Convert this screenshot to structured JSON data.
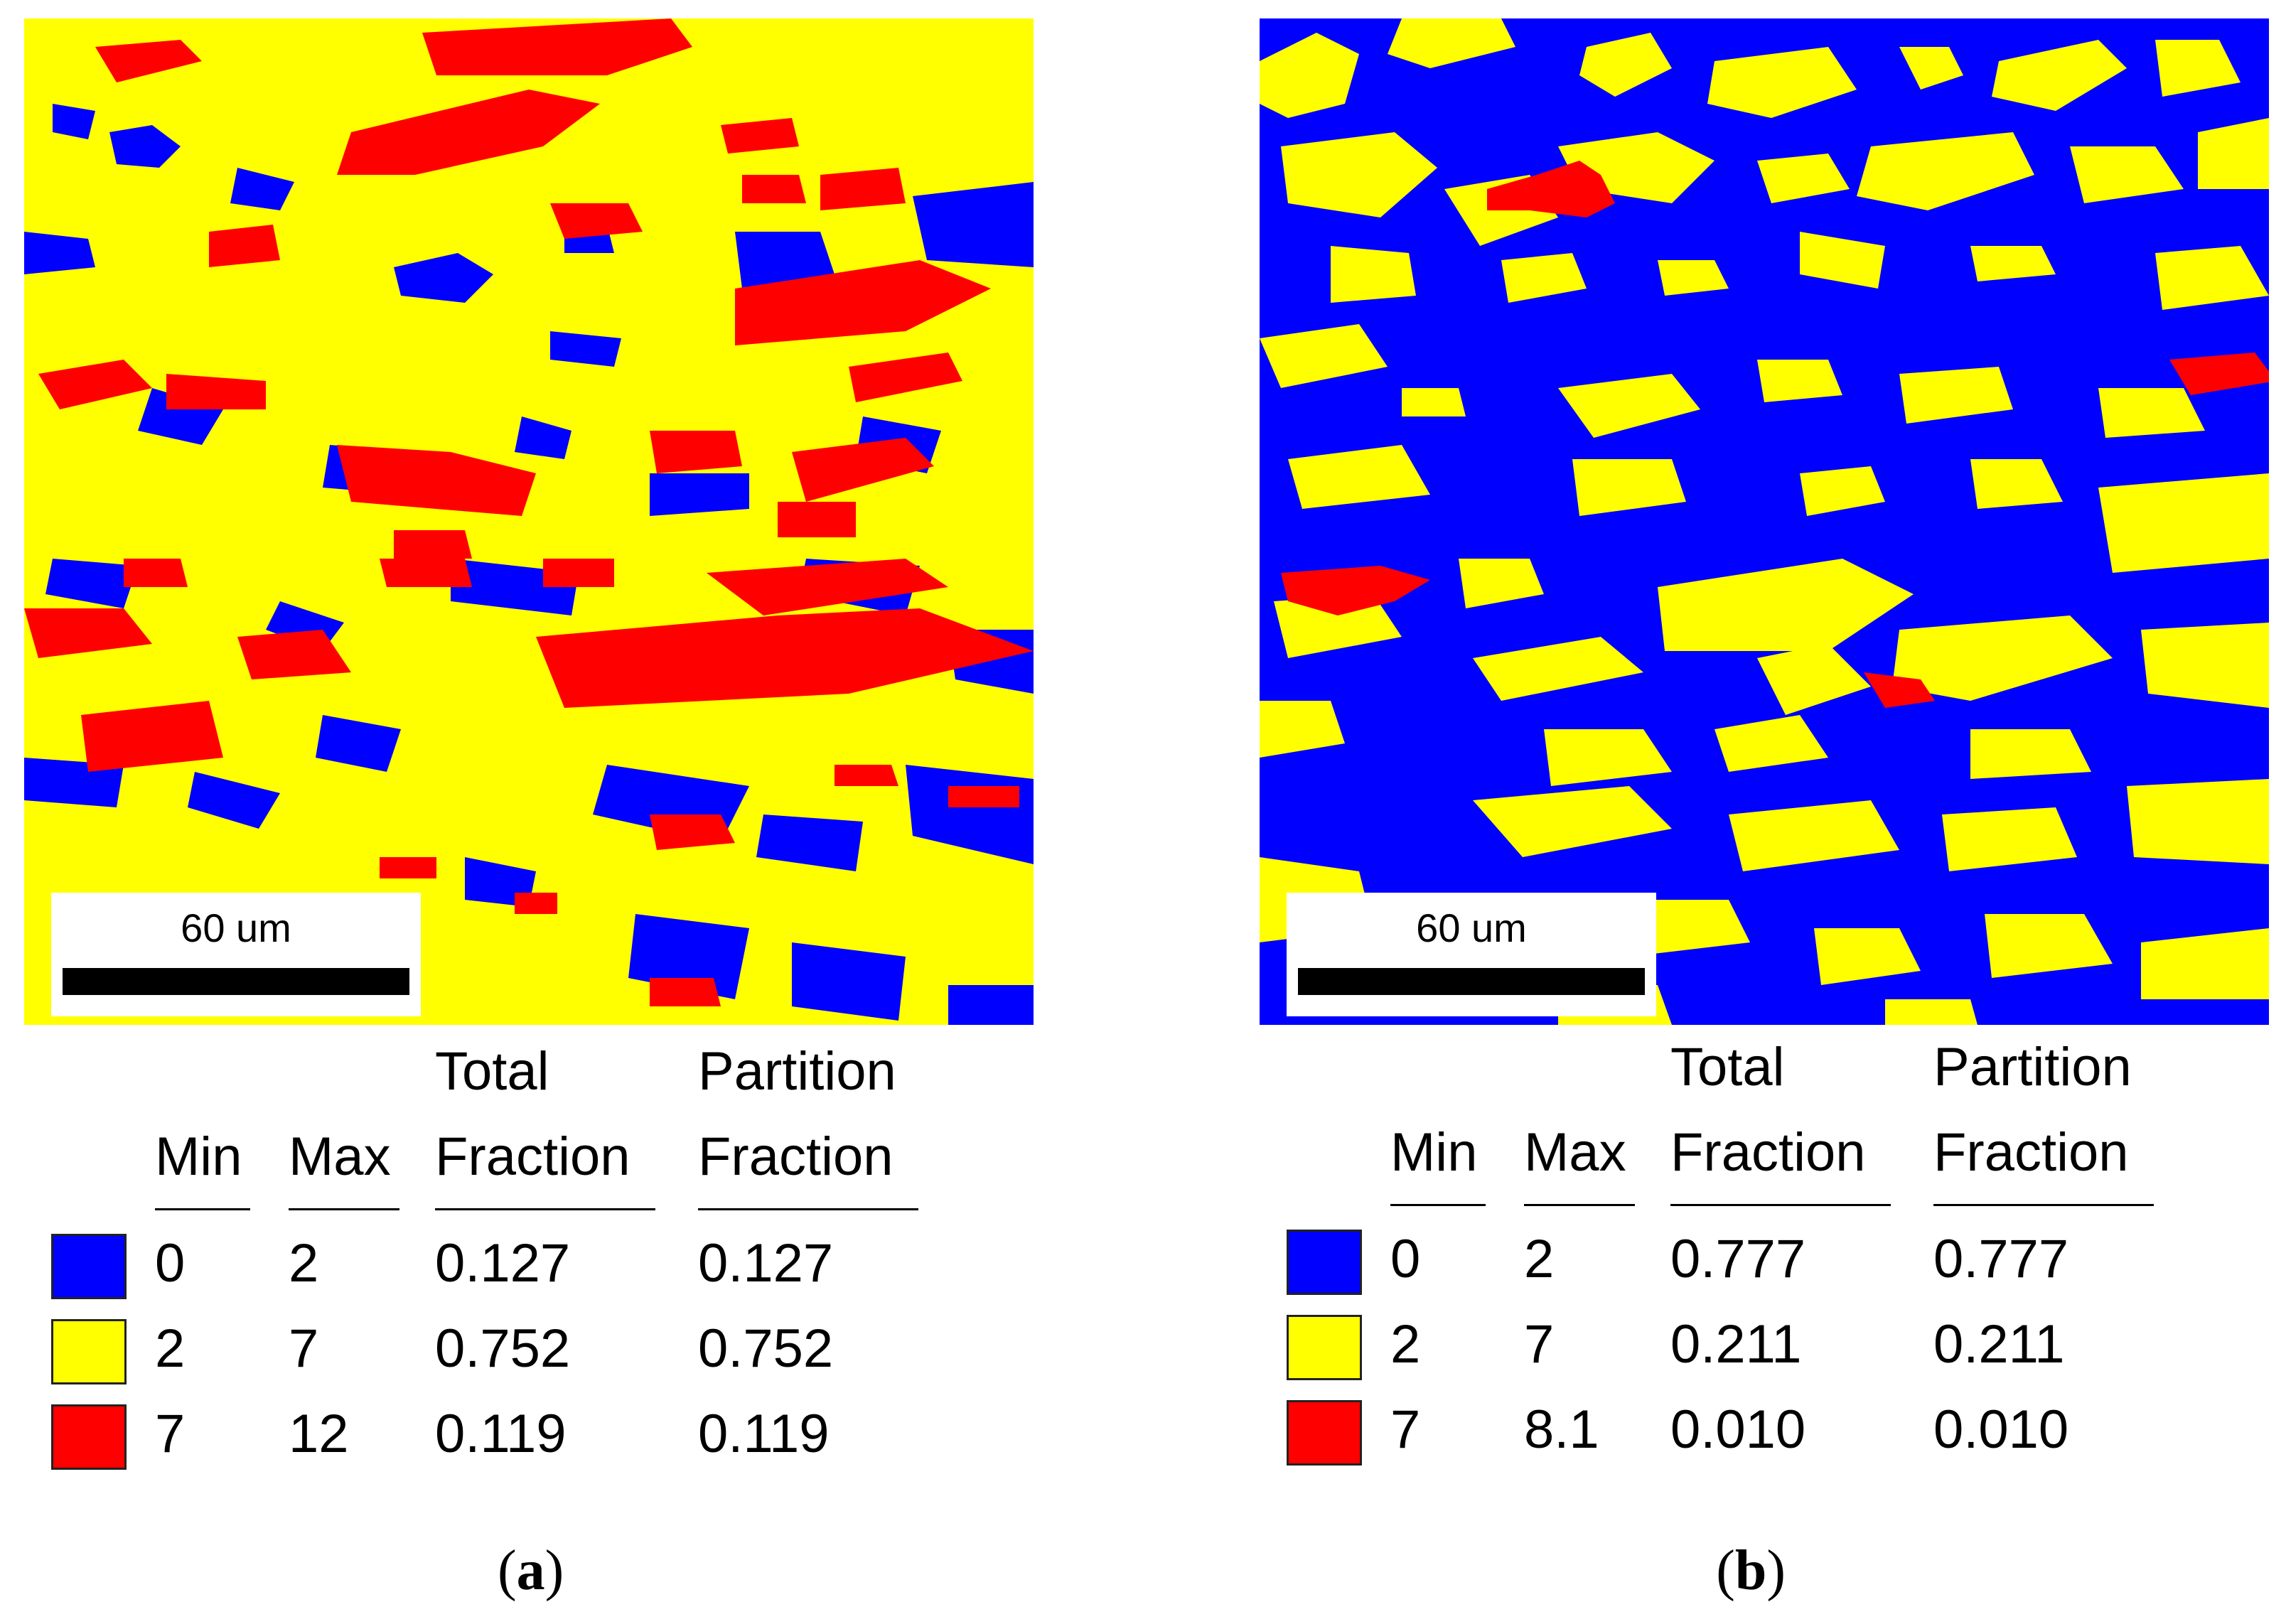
{
  "colors": {
    "blue": "#0000ff",
    "yellow": "#ffff00",
    "red": "#ff0000"
  },
  "legend_headers": {
    "min": "Min",
    "max": "Max",
    "total_line1": "Total",
    "total_line2": "Fraction",
    "partition_line1": "Partition",
    "partition_line2": "Fraction"
  },
  "panels": [
    {
      "label": "a",
      "map_background": "yellow",
      "scale_label": "60 um",
      "rows": [
        {
          "color": "blue",
          "min": "0",
          "max": "2",
          "total": "0.127",
          "partition": "0.127"
        },
        {
          "color": "yellow",
          "min": "2",
          "max": "7",
          "total": "0.752",
          "partition": "0.752"
        },
        {
          "color": "red",
          "min": "7",
          "max": "12",
          "total": "0.119",
          "partition": "0.119"
        }
      ]
    },
    {
      "label": "b",
      "map_background": "blue",
      "scale_label": "60 um",
      "rows": [
        {
          "color": "blue",
          "min": "0",
          "max": "2",
          "total": "0.777",
          "partition": "0.777"
        },
        {
          "color": "yellow",
          "min": "2",
          "max": "7",
          "total": "0.211",
          "partition": "0.211"
        },
        {
          "color": "red",
          "min": "7",
          "max": "8.1",
          "total": "0.010",
          "partition": "0.010"
        }
      ]
    }
  ]
}
